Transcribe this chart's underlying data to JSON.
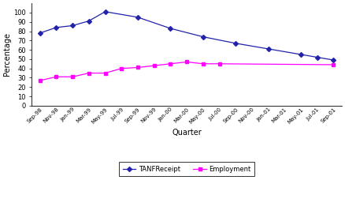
{
  "quarters": [
    "Sep-98",
    "Nov-98",
    "Jan-99",
    "Mar-99",
    "May-99",
    "Jul-99",
    "Sep-99",
    "Nov-99",
    "Jan-00",
    "Mar-00",
    "May-00",
    "Jul-00",
    "Sep-00",
    "Nov-00",
    "Jan-01",
    "Mar-01",
    "May-01",
    "Jul-01",
    "Sep-01"
  ],
  "tanf_y": [
    78,
    84,
    86,
    91,
    101,
    null,
    95,
    null,
    83,
    null,
    74,
    null,
    67,
    null,
    61,
    null,
    55,
    52,
    49
  ],
  "emp_y": [
    27,
    31,
    31,
    35,
    35,
    40,
    41,
    43,
    45,
    47,
    45,
    45,
    null,
    null,
    null,
    null,
    null,
    null,
    44
  ],
  "ylabel": "Percentage",
  "xlabel": "Quarter",
  "ylim": [
    0,
    110
  ],
  "yticks": [
    0,
    10,
    20,
    30,
    40,
    50,
    60,
    70,
    80,
    90,
    100
  ],
  "tanf_color": "#2222AA",
  "emp_color": "#FF00FF",
  "legend_tanf": "TANFReceipt",
  "legend_emp": "Employment",
  "bg_color": "#FFFFFF"
}
